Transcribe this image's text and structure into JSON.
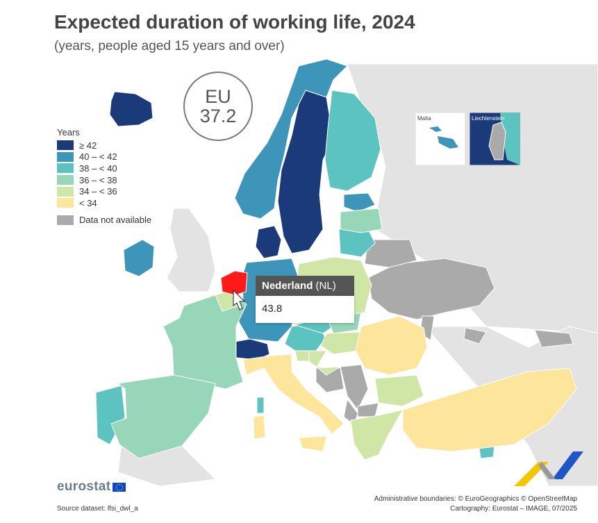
{
  "title": "Expected duration of working life, 2024",
  "subtitle": "(years, people aged 15 years and over)",
  "eu_badge": {
    "label": "EU",
    "value": "37.2"
  },
  "legend": {
    "title": "Years",
    "classes": [
      {
        "label": "≥ 42",
        "color": "#1a3a7a"
      },
      {
        "label": "40 – < 42",
        "color": "#3d95b9"
      },
      {
        "label": "38 – < 40",
        "color": "#5cc3c0"
      },
      {
        "label": "36 – < 38",
        "color": "#97d6b8"
      },
      {
        "label": "34 – < 36",
        "color": "#cfe6a6"
      },
      {
        "label": "< 34",
        "color": "#fde69b"
      }
    ],
    "not_available": {
      "label": "Data not available",
      "color": "#aaaaaa"
    }
  },
  "insets": {
    "malta": "Malta",
    "liechtenstein": "Liechtenstein"
  },
  "tooltip": {
    "country": "Nederland",
    "code": "(NL)",
    "value": "43.8"
  },
  "highlight_color": "#ff1a1a",
  "footer": {
    "logo": "eurostat",
    "source": "Source dataset: lfsi_dwl_a",
    "boundaries": "Administrative boundaries: © EuroGeographics © OpenStreetMap",
    "cartography": "Cartography: Eurostat – IMAGE, 07/2025"
  }
}
